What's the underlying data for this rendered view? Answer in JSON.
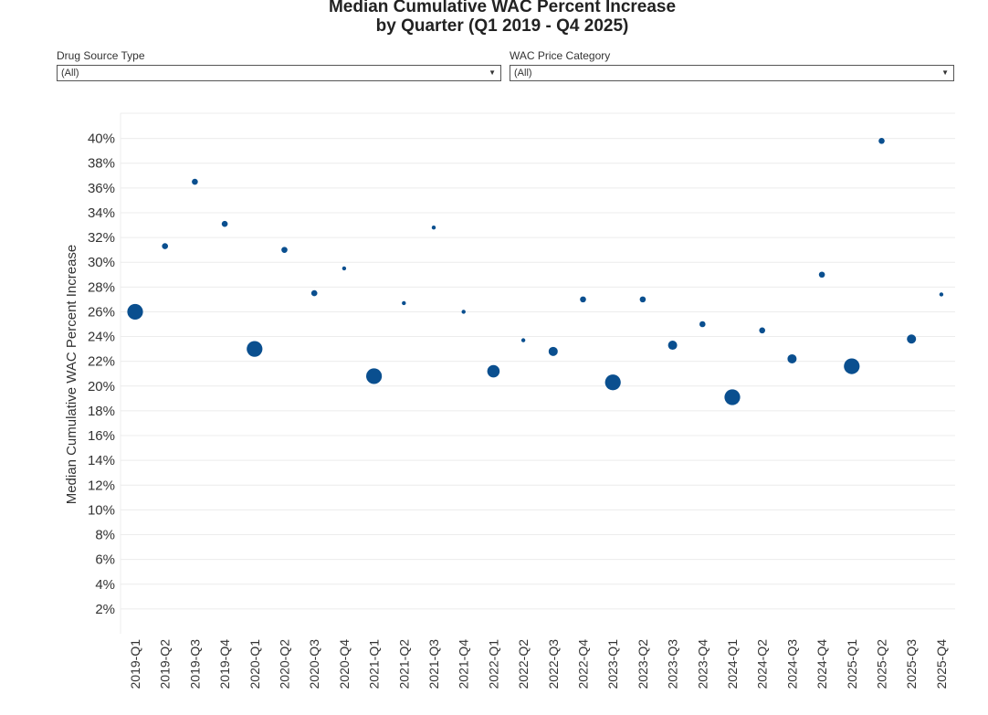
{
  "title": {
    "line1": "Median Cumulative WAC Percent Increase",
    "line2": "by Quarter (Q1 2019 - Q4 2025)"
  },
  "filters": [
    {
      "label": "Drug Source Type",
      "value": "(All)"
    },
    {
      "label": "WAC Price Category",
      "value": "(All)"
    }
  ],
  "colors": {
    "marker": "#0a4f8f",
    "grid": "#ececec"
  },
  "chart_data": {
    "type": "scatter",
    "ylabel": "Median Cumulative WAC Percent Increase",
    "xlabel": "",
    "ylim": [
      0,
      42
    ],
    "yticks": [
      2,
      4,
      6,
      8,
      10,
      12,
      14,
      16,
      18,
      20,
      22,
      24,
      26,
      28,
      30,
      32,
      34,
      36,
      38,
      40
    ],
    "ytick_suffix": "%",
    "categories": [
      "2019-Q1",
      "2019-Q2",
      "2019-Q3",
      "2019-Q4",
      "2020-Q1",
      "2020-Q2",
      "2020-Q3",
      "2020-Q4",
      "2021-Q1",
      "2021-Q2",
      "2021-Q3",
      "2021-Q4",
      "2022-Q1",
      "2022-Q2",
      "2022-Q3",
      "2022-Q4",
      "2023-Q1",
      "2023-Q2",
      "2023-Q3",
      "2023-Q4",
      "2024-Q1",
      "2024-Q2",
      "2024-Q3",
      "2024-Q4",
      "2025-Q1",
      "2025-Q2",
      "2025-Q3",
      "2025-Q4"
    ],
    "values": [
      26.0,
      31.3,
      36.5,
      33.1,
      23.0,
      31.0,
      27.5,
      29.5,
      20.8,
      26.7,
      32.8,
      26.0,
      21.2,
      23.7,
      22.8,
      27.0,
      20.3,
      27.0,
      23.3,
      25.0,
      19.1,
      24.5,
      22.2,
      29.0,
      21.6,
      39.8,
      23.8,
      27.4
    ],
    "size_level": [
      5,
      2,
      2,
      2,
      5,
      2,
      2,
      1,
      5,
      1,
      1,
      1,
      4,
      1,
      3,
      2,
      5,
      2,
      3,
      2,
      5,
      2,
      3,
      2,
      5,
      2,
      3,
      1
    ],
    "grid": true,
    "legend": "none"
  }
}
